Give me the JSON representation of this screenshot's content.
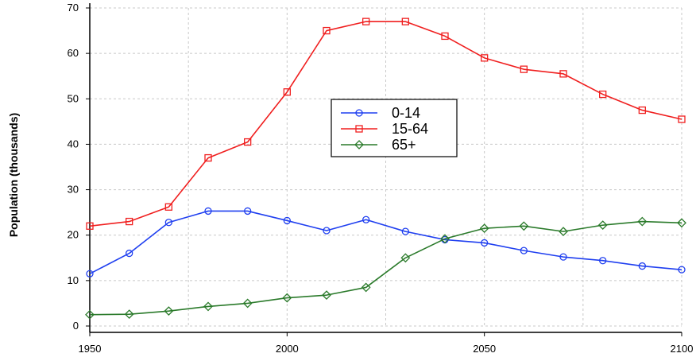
{
  "chart_data": {
    "type": "line",
    "title": "",
    "xlabel": "",
    "ylabel": "Population (thousands)",
    "xlim": [
      1950,
      2100
    ],
    "ylim": [
      0,
      70
    ],
    "x_ticks": [
      1950,
      2000,
      2050,
      2100
    ],
    "y_ticks": [
      0,
      10,
      20,
      30,
      40,
      50,
      60,
      70
    ],
    "grid": true,
    "legend_position": "center",
    "series": [
      {
        "name": "0-14",
        "color": "#1f3ff0",
        "marker": "circle",
        "x": [
          1950,
          1960,
          1970,
          1980,
          1990,
          2000,
          2010,
          2020,
          2030,
          2040,
          2050,
          2060,
          2070,
          2080,
          2090,
          2100
        ],
        "values": [
          11.5,
          16,
          22.8,
          25.3,
          25.3,
          23.2,
          21,
          23.4,
          20.8,
          19,
          18.3,
          16.6,
          15.2,
          14.4,
          13.2,
          12.4
        ]
      },
      {
        "name": "15-64",
        "color": "#f01f1f",
        "marker": "square",
        "x": [
          1950,
          1960,
          1970,
          1980,
          1990,
          2000,
          2010,
          2020,
          2030,
          2040,
          2050,
          2060,
          2070,
          2080,
          2090,
          2100
        ],
        "values": [
          22,
          23,
          26.2,
          37,
          40.5,
          51.5,
          65,
          67,
          67,
          63.8,
          59,
          56.5,
          55.5,
          51,
          47.5,
          45.5
        ]
      },
      {
        "name": "65+",
        "color": "#2a7a2a",
        "marker": "diamond",
        "x": [
          1950,
          1960,
          1970,
          1980,
          1990,
          2000,
          2010,
          2020,
          2030,
          2040,
          2050,
          2060,
          2070,
          2080,
          2090,
          2100
        ],
        "values": [
          2.5,
          2.6,
          3.3,
          4.3,
          5,
          6.2,
          6.8,
          8.5,
          15,
          19.2,
          21.5,
          22,
          20.8,
          22.2,
          23,
          22.7
        ]
      }
    ]
  }
}
